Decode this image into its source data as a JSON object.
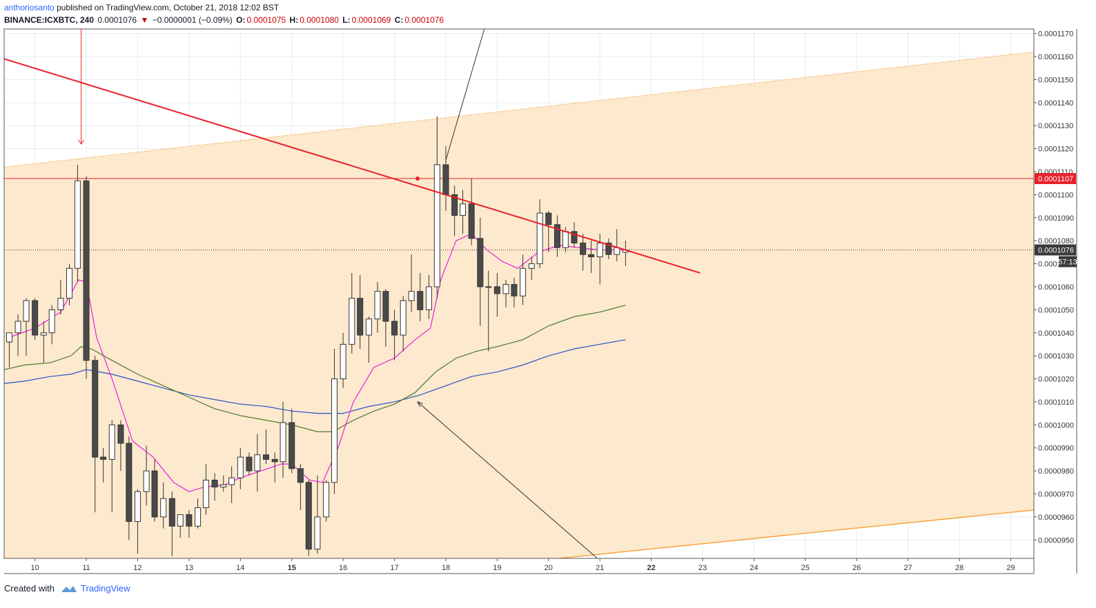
{
  "header": {
    "author": "anthoriosanto",
    "published_text": "published on TradingView.com, October 21, 2018 12:02 BST",
    "symbol": "BINANCE:ICXBTC, 240",
    "last": "0.0001076",
    "change": "−0.0000001 (−0.09%)",
    "o_label": "O:",
    "o": "0.0001075",
    "h_label": "H:",
    "h": "0.0001080",
    "l_label": "L:",
    "l": "0.0001069",
    "c_label": "C:",
    "c": "0.0001076"
  },
  "footer": {
    "created_with": "Created with",
    "brand": "TradingView"
  },
  "colors": {
    "channel_fill": "#fde9cd",
    "channel_line": "#f7a440",
    "trendline": "#e8202a",
    "hline": "#e8202a",
    "ema_pink": "#e91ee0",
    "ma_green": "#4a7a2a",
    "ma_blue": "#2852c8",
    "bear_candle": "#4a4a4a",
    "bull_candle": "#ffffff"
  },
  "chart_data": {
    "type": "candlestick",
    "timeframe": "240",
    "x_tick_labels": [
      "10",
      "11",
      "12",
      "13",
      "14",
      "15",
      "16",
      "17",
      "18",
      "19",
      "20",
      "21",
      "22",
      "23",
      "24",
      "25",
      "26",
      "27",
      "28",
      "29"
    ],
    "bold_x_ticks": [
      "15",
      "22"
    ],
    "y_tick_labels": [
      "0.0001170",
      "0.0001160",
      "0.0001150",
      "0.0001140",
      "0.0001130",
      "0.0001120",
      "0.0001110",
      "0.0001100",
      "0.0001090",
      "0.0001080",
      "0.0001070",
      "0.0001060",
      "0.0001050",
      "0.0001040",
      "0.0001030",
      "0.0001020",
      "0.0001010",
      "0.0001000",
      "0.0000990",
      "0.0000980",
      "0.0000970",
      "0.0000960",
      "0.0000950"
    ],
    "ylim": [
      9.42e-05,
      0.0001172
    ],
    "xlim": [
      9.4,
      29.45
    ],
    "price_label_hline": "0.0001107",
    "price_label_last": "0.0001076",
    "countdown": "57:13",
    "candles": [
      {
        "x": 9.5,
        "o": 0.0001036,
        "h": 0.000104,
        "l": 0.0001025,
        "c": 0.000104
      },
      {
        "x": 9.67,
        "o": 0.000104,
        "h": 0.0001048,
        "l": 0.000103,
        "c": 0.0001045
      },
      {
        "x": 9.83,
        "o": 0.0001045,
        "h": 0.0001055,
        "l": 0.000103,
        "c": 0.0001054
      },
      {
        "x": 10.0,
        "o": 0.0001054,
        "h": 0.0001055,
        "l": 0.0001037,
        "c": 0.0001039
      },
      {
        "x": 10.17,
        "o": 0.0001039,
        "h": 0.0001045,
        "l": 0.0001027,
        "c": 0.000104
      },
      {
        "x": 10.33,
        "o": 0.000104,
        "h": 0.0001052,
        "l": 0.0001035,
        "c": 0.000105
      },
      {
        "x": 10.5,
        "o": 0.000105,
        "h": 0.0001063,
        "l": 0.0001048,
        "c": 0.0001055
      },
      {
        "x": 10.67,
        "o": 0.0001055,
        "h": 0.000107,
        "l": 0.0001052,
        "c": 0.0001068
      },
      {
        "x": 10.83,
        "o": 0.0001068,
        "h": 0.0001113,
        "l": 0.0001062,
        "c": 0.0001106
      },
      {
        "x": 11.0,
        "o": 0.0001106,
        "h": 0.0001108,
        "l": 0.000102,
        "c": 0.0001028
      },
      {
        "x": 11.17,
        "o": 0.0001028,
        "h": 0.000103,
        "l": 9.62e-05,
        "c": 9.86e-05
      },
      {
        "x": 11.33,
        "o": 9.86e-05,
        "h": 9.9e-05,
        "l": 9.75e-05,
        "c": 9.85e-05
      },
      {
        "x": 11.5,
        "o": 9.85e-05,
        "h": 0.0001002,
        "l": 9.62e-05,
        "c": 0.0001
      },
      {
        "x": 11.67,
        "o": 0.0001,
        "h": 0.0001002,
        "l": 9.8e-05,
        "c": 9.92e-05
      },
      {
        "x": 11.83,
        "o": 9.92e-05,
        "h": 9.95e-05,
        "l": 9.5e-05,
        "c": 9.58e-05
      },
      {
        "x": 12.0,
        "o": 9.58e-05,
        "h": 9.72e-05,
        "l": 9.44e-05,
        "c": 9.71e-05
      },
      {
        "x": 12.17,
        "o": 9.71e-05,
        "h": 9.91e-05,
        "l": 9.65e-05,
        "c": 9.8e-05
      },
      {
        "x": 12.33,
        "o": 9.8e-05,
        "h": 9.85e-05,
        "l": 9.58e-05,
        "c": 9.6e-05
      },
      {
        "x": 12.5,
        "o": 9.6e-05,
        "h": 9.75e-05,
        "l": 9.55e-05,
        "c": 9.68e-05
      },
      {
        "x": 12.67,
        "o": 9.68e-05,
        "h": 9.71e-05,
        "l": 9.43e-05,
        "c": 9.56e-05
      },
      {
        "x": 12.83,
        "o": 9.56e-05,
        "h": 9.61e-05,
        "l": 9.51e-05,
        "c": 9.61e-05
      },
      {
        "x": 13.0,
        "o": 9.61e-05,
        "h": 9.63e-05,
        "l": 9.51e-05,
        "c": 9.56e-05
      },
      {
        "x": 13.17,
        "o": 9.56e-05,
        "h": 9.68e-05,
        "l": 9.55e-05,
        "c": 9.64e-05
      },
      {
        "x": 13.33,
        "o": 9.64e-05,
        "h": 9.83e-05,
        "l": 9.61e-05,
        "c": 9.76e-05
      },
      {
        "x": 13.5,
        "o": 9.76e-05,
        "h": 9.79e-05,
        "l": 9.67e-05,
        "c": 9.73e-05
      },
      {
        "x": 13.67,
        "o": 9.73e-05,
        "h": 9.78e-05,
        "l": 9.71e-05,
        "c": 9.74e-05
      },
      {
        "x": 13.83,
        "o": 9.74e-05,
        "h": 9.82e-05,
        "l": 9.66e-05,
        "c": 9.77e-05
      },
      {
        "x": 14.0,
        "o": 9.77e-05,
        "h": 9.9e-05,
        "l": 9.72e-05,
        "c": 9.86e-05
      },
      {
        "x": 14.17,
        "o": 9.86e-05,
        "h": 9.88e-05,
        "l": 9.78e-05,
        "c": 9.8e-05
      },
      {
        "x": 14.33,
        "o": 9.8e-05,
        "h": 9.96e-05,
        "l": 9.71e-05,
        "c": 9.87e-05
      },
      {
        "x": 14.5,
        "o": 9.87e-05,
        "h": 9.98e-05,
        "l": 9.83e-05,
        "c": 9.85e-05
      },
      {
        "x": 14.67,
        "o": 9.85e-05,
        "h": 9.88e-05,
        "l": 9.75e-05,
        "c": 9.84e-05
      },
      {
        "x": 14.83,
        "o": 9.84e-05,
        "h": 0.000101,
        "l": 9.77e-05,
        "c": 0.0001001
      },
      {
        "x": 15.0,
        "o": 0.0001001,
        "h": 0.0001007,
        "l": 9.79e-05,
        "c": 9.81e-05
      },
      {
        "x": 15.17,
        "o": 9.81e-05,
        "h": 9.83e-05,
        "l": 9.63e-05,
        "c": 9.75e-05
      },
      {
        "x": 15.33,
        "o": 9.75e-05,
        "h": 9.76e-05,
        "l": 9.43e-05,
        "c": 9.46e-05
      },
      {
        "x": 15.5,
        "o": 9.46e-05,
        "h": 9.78e-05,
        "l": 9.44e-05,
        "c": 9.6e-05
      },
      {
        "x": 15.67,
        "o": 9.6e-05,
        "h": 9.76e-05,
        "l": 9.58e-05,
        "c": 9.75e-05
      },
      {
        "x": 15.83,
        "o": 9.75e-05,
        "h": 0.0001033,
        "l": 9.7e-05,
        "c": 0.000102
      },
      {
        "x": 16.0,
        "o": 0.000102,
        "h": 0.000104,
        "l": 0.0001016,
        "c": 0.0001035
      },
      {
        "x": 16.17,
        "o": 0.0001035,
        "h": 0.0001066,
        "l": 0.0001031,
        "c": 0.0001055
      },
      {
        "x": 16.33,
        "o": 0.0001055,
        "h": 0.0001065,
        "l": 0.0001033,
        "c": 0.0001039
      },
      {
        "x": 16.5,
        "o": 0.0001039,
        "h": 0.0001047,
        "l": 0.0001027,
        "c": 0.0001046
      },
      {
        "x": 16.67,
        "o": 0.0001046,
        "h": 0.0001062,
        "l": 0.000104,
        "c": 0.0001058
      },
      {
        "x": 16.83,
        "o": 0.0001058,
        "h": 0.0001059,
        "l": 0.0001034,
        "c": 0.0001045
      },
      {
        "x": 17.0,
        "o": 0.0001045,
        "h": 0.000105,
        "l": 0.0001028,
        "c": 0.0001039
      },
      {
        "x": 17.17,
        "o": 0.0001039,
        "h": 0.0001056,
        "l": 0.0001032,
        "c": 0.0001054
      },
      {
        "x": 17.33,
        "o": 0.0001054,
        "h": 0.0001074,
        "l": 0.0001049,
        "c": 0.0001058
      },
      {
        "x": 17.5,
        "o": 0.0001058,
        "h": 0.0001066,
        "l": 0.0001045,
        "c": 0.000105
      },
      {
        "x": 17.67,
        "o": 0.000105,
        "h": 0.0001065,
        "l": 0.0001046,
        "c": 0.000106
      },
      {
        "x": 17.83,
        "o": 0.000106,
        "h": 0.0001134,
        "l": 0.0001055,
        "c": 0.0001113
      },
      {
        "x": 18.0,
        "o": 0.0001113,
        "h": 0.0001121,
        "l": 0.0001093,
        "c": 0.00011
      },
      {
        "x": 18.17,
        "o": 0.00011,
        "h": 0.0001104,
        "l": 0.0001082,
        "c": 0.0001091
      },
      {
        "x": 18.33,
        "o": 0.0001091,
        "h": 0.0001102,
        "l": 0.0001083,
        "c": 0.0001096
      },
      {
        "x": 18.5,
        "o": 0.0001096,
        "h": 0.0001107,
        "l": 0.0001078,
        "c": 0.0001081
      },
      {
        "x": 18.67,
        "o": 0.0001081,
        "h": 0.000109,
        "l": 0.0001043,
        "c": 0.000106
      },
      {
        "x": 18.83,
        "o": 0.000106,
        "h": 0.0001067,
        "l": 0.0001032,
        "c": 0.000106
      },
      {
        "x": 19.0,
        "o": 0.000106,
        "h": 0.0001066,
        "l": 0.0001047,
        "c": 0.0001057
      },
      {
        "x": 19.17,
        "o": 0.0001057,
        "h": 0.0001063,
        "l": 0.0001051,
        "c": 0.0001061
      },
      {
        "x": 19.33,
        "o": 0.0001061,
        "h": 0.0001064,
        "l": 0.0001051,
        "c": 0.0001056
      },
      {
        "x": 19.5,
        "o": 0.0001056,
        "h": 0.0001074,
        "l": 0.0001052,
        "c": 0.0001068
      },
      {
        "x": 19.67,
        "o": 0.0001068,
        "h": 0.0001073,
        "l": 0.0001063,
        "c": 0.000107
      },
      {
        "x": 19.83,
        "o": 0.000107,
        "h": 0.0001098,
        "l": 0.0001068,
        "c": 0.0001092
      },
      {
        "x": 20.0,
        "o": 0.0001092,
        "h": 0.0001093,
        "l": 0.0001075,
        "c": 0.0001087
      },
      {
        "x": 20.17,
        "o": 0.0001087,
        "h": 0.0001091,
        "l": 0.0001073,
        "c": 0.0001077
      },
      {
        "x": 20.33,
        "o": 0.0001077,
        "h": 0.0001086,
        "l": 0.0001075,
        "c": 0.0001084
      },
      {
        "x": 20.5,
        "o": 0.0001084,
        "h": 0.0001088,
        "l": 0.0001077,
        "c": 0.0001079
      },
      {
        "x": 20.67,
        "o": 0.0001079,
        "h": 0.0001083,
        "l": 0.0001067,
        "c": 0.0001074
      },
      {
        "x": 20.83,
        "o": 0.0001074,
        "h": 0.000108,
        "l": 0.0001066,
        "c": 0.0001073
      },
      {
        "x": 21.0,
        "o": 0.0001073,
        "h": 0.0001083,
        "l": 0.0001061,
        "c": 0.0001079
      },
      {
        "x": 21.17,
        "o": 0.0001079,
        "h": 0.0001081,
        "l": 0.0001072,
        "c": 0.0001074
      },
      {
        "x": 21.33,
        "o": 0.0001074,
        "h": 0.0001085,
        "l": 0.0001071,
        "c": 0.0001077
      },
      {
        "x": 21.5,
        "o": 0.0001075,
        "h": 0.000108,
        "l": 0.0001069,
        "c": 0.0001076
      }
    ],
    "ema_pink": [
      [
        9.5,
        0.0001038
      ],
      [
        10.0,
        0.0001042
      ],
      [
        10.5,
        0.0001049
      ],
      [
        10.85,
        0.0001063
      ],
      [
        11.0,
        0.0001062
      ],
      [
        11.2,
        0.0001038
      ],
      [
        11.5,
        0.000102
      ],
      [
        11.9,
        9.93e-05
      ],
      [
        12.3,
        9.86e-05
      ],
      [
        12.7,
        9.75e-05
      ],
      [
        13.0,
        9.71e-05
      ],
      [
        13.3,
        9.73e-05
      ],
      [
        13.7,
        9.74e-05
      ],
      [
        14.0,
        9.77e-05
      ],
      [
        14.4,
        9.8e-05
      ],
      [
        14.8,
        9.83e-05
      ],
      [
        15.0,
        9.83e-05
      ],
      [
        15.35,
        9.76e-05
      ],
      [
        15.6,
        9.75e-05
      ],
      [
        15.9,
        9.9e-05
      ],
      [
        16.2,
        0.000101
      ],
      [
        16.6,
        0.0001025
      ],
      [
        17.0,
        0.0001029
      ],
      [
        17.4,
        0.0001037
      ],
      [
        17.7,
        0.0001042
      ],
      [
        17.9,
        0.0001063
      ],
      [
        18.2,
        0.000108
      ],
      [
        18.5,
        0.0001083
      ],
      [
        18.8,
        0.0001076
      ],
      [
        19.1,
        0.0001071
      ],
      [
        19.4,
        0.0001068
      ],
      [
        19.8,
        0.0001075
      ],
      [
        20.2,
        0.0001078
      ],
      [
        20.6,
        0.0001077
      ],
      [
        21.0,
        0.0001076
      ],
      [
        21.5,
        0.0001076
      ]
    ],
    "ma_green": [
      [
        9.4,
        0.0001024
      ],
      [
        9.8,
        0.0001026
      ],
      [
        10.3,
        0.0001027
      ],
      [
        10.7,
        0.000103
      ],
      [
        10.9,
        0.0001034
      ],
      [
        11.1,
        0.0001033
      ],
      [
        11.5,
        0.0001028
      ],
      [
        12.0,
        0.0001022
      ],
      [
        12.5,
        0.0001017
      ],
      [
        13.0,
        0.0001012
      ],
      [
        13.5,
        0.0001007
      ],
      [
        14.0,
        0.0001004
      ],
      [
        14.5,
        0.0001002
      ],
      [
        15.0,
        0.0001
      ],
      [
        15.5,
        9.97e-05
      ],
      [
        15.8,
        9.97e-05
      ],
      [
        16.2,
        0.0001002
      ],
      [
        16.6,
        0.0001006
      ],
      [
        17.0,
        0.0001009
      ],
      [
        17.4,
        0.0001014
      ],
      [
        17.8,
        0.0001023
      ],
      [
        18.2,
        0.0001029
      ],
      [
        18.6,
        0.0001032
      ],
      [
        19.0,
        0.0001034
      ],
      [
        19.5,
        0.0001037
      ],
      [
        20.0,
        0.0001043
      ],
      [
        20.5,
        0.0001047
      ],
      [
        21.0,
        0.0001049
      ],
      [
        21.5,
        0.0001052
      ]
    ],
    "ma_blue": [
      [
        9.4,
        0.0001018
      ],
      [
        9.8,
        0.0001019
      ],
      [
        10.3,
        0.0001021
      ],
      [
        10.7,
        0.0001022
      ],
      [
        11.0,
        0.0001024
      ],
      [
        11.5,
        0.0001022
      ],
      [
        12.0,
        0.0001019
      ],
      [
        12.5,
        0.0001016
      ],
      [
        13.0,
        0.0001013
      ],
      [
        13.5,
        0.0001011
      ],
      [
        14.0,
        0.0001009
      ],
      [
        14.5,
        0.0001008
      ],
      [
        15.0,
        0.0001006
      ],
      [
        15.5,
        0.0001005
      ],
      [
        16.0,
        0.0001005
      ],
      [
        16.5,
        0.0001008
      ],
      [
        17.0,
        0.000101
      ],
      [
        17.5,
        0.0001013
      ],
      [
        18.0,
        0.0001017
      ],
      [
        18.5,
        0.0001021
      ],
      [
        19.0,
        0.0001023
      ],
      [
        19.5,
        0.0001026
      ],
      [
        20.0,
        0.000103
      ],
      [
        20.5,
        0.0001033
      ],
      [
        21.0,
        0.0001035
      ],
      [
        21.5,
        0.0001037
      ]
    ],
    "channel_upper": [
      [
        9.4,
        0.0001112
      ],
      [
        29.45,
        0.0001162
      ]
    ],
    "channel_lower": [
      [
        20.2,
        9.42e-05
      ],
      [
        29.45,
        9.63e-05
      ]
    ],
    "trendline": [
      [
        9.4,
        0.0001159
      ],
      [
        22.95,
        0.0001066
      ]
    ],
    "hline_value": 0.0001107,
    "last_value": 0.0001076,
    "markers": {
      "red_arrow_down": {
        "x": 10.9,
        "from": 0.0001172,
        "to": 0.0001122
      },
      "red_dot": {
        "x": 17.45,
        "y": 0.0001107
      },
      "black_line_up": {
        "x1": 18.0,
        "y1": 0.0001115,
        "x2": 18.75,
        "y2": 0.0001172
      },
      "black_arrow": {
        "x1": 20.95,
        "y1": 9.42e-05,
        "x2": 17.45,
        "y2": 0.000101
      }
    }
  }
}
